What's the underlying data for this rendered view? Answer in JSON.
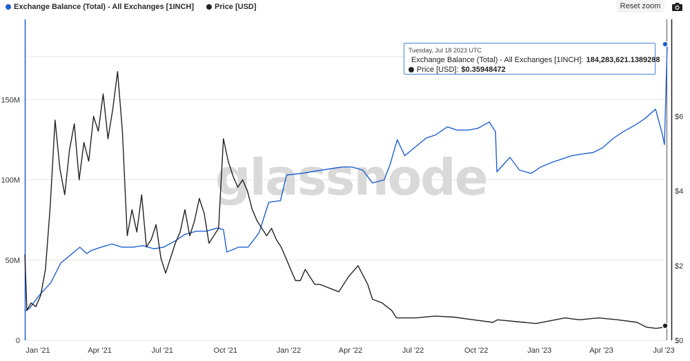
{
  "legend": [
    {
      "label": "Exchange Balance (Total) - All Exchanges [1INCH]",
      "color": "#1f5fd0"
    },
    {
      "label": "Price [USD]",
      "color": "#222222"
    }
  ],
  "toolbar": {
    "reset_label": "Reset zoom",
    "camera_icon": "camera-icon"
  },
  "watermark": "glassnode",
  "tooltip": {
    "date": "Tuesday, Jul 18 2023 UTC",
    "balance_label": "Exchange Balance (Total) - All Exchanges [1INCH]:",
    "balance_value": "184,283,621.1389288",
    "price_label": "Price [USD]:",
    "price_value": "$0.35948472"
  },
  "chart_data": {
    "type": "line",
    "x_ticks": [
      "Jan '21",
      "Apr '21",
      "Jul '21",
      "Oct '21",
      "Jan '22",
      "Apr '22",
      "Jul '22",
      "Oct '22",
      "Jan '23",
      "Apr '23",
      "Jul '23"
    ],
    "y_left_ticks": [
      "0",
      "50M",
      "100M",
      "150M"
    ],
    "y_right_ticks": [
      "$0",
      "$2",
      "$4",
      "$6"
    ],
    "y_left_range": [
      0,
      200000000
    ],
    "y_right_range": [
      0,
      8.6
    ],
    "grid": true,
    "legend_position": "top-left",
    "series": [
      {
        "name": "Exchange Balance (Total) - All Exchanges [1INCH]",
        "axis": "left",
        "color": "#1f5fd0",
        "x": [
          "2020-12-25",
          "2021-01-01",
          "2021-01-15",
          "2021-02-01",
          "2021-02-15",
          "2021-03-01",
          "2021-03-15",
          "2021-03-25",
          "2021-04-01",
          "2021-04-15",
          "2021-05-01",
          "2021-05-15",
          "2021-06-01",
          "2021-06-15",
          "2021-07-01",
          "2021-07-15",
          "2021-08-01",
          "2021-08-15",
          "2021-09-01",
          "2021-09-15",
          "2021-10-01",
          "2021-10-10",
          "2021-10-15",
          "2021-11-01",
          "2021-11-15",
          "2021-12-01",
          "2021-12-15",
          "2022-01-01",
          "2022-01-10",
          "2022-02-01",
          "2022-03-01",
          "2022-04-01",
          "2022-04-15",
          "2022-05-01",
          "2022-05-15",
          "2022-06-01",
          "2022-06-10",
          "2022-06-20",
          "2022-07-01",
          "2022-07-15",
          "2022-08-01",
          "2022-08-15",
          "2022-09-01",
          "2022-09-15",
          "2022-10-01",
          "2022-10-15",
          "2022-11-01",
          "2022-11-10",
          "2022-11-12",
          "2022-12-01",
          "2022-12-15",
          "2023-01-01",
          "2023-01-15",
          "2023-02-01",
          "2023-02-15",
          "2023-03-01",
          "2023-03-15",
          "2023-04-01",
          "2023-04-15",
          "2023-05-01",
          "2023-05-15",
          "2023-06-01",
          "2023-06-15",
          "2023-07-01",
          "2023-07-10",
          "2023-07-14",
          "2023-07-18"
        ],
        "y": [
          18000000,
          20000000,
          28000000,
          36000000,
          48000000,
          53000000,
          58000000,
          54000000,
          56000000,
          58000000,
          60000000,
          58000000,
          58000000,
          59000000,
          57000000,
          58000000,
          62000000,
          66000000,
          68000000,
          68000000,
          70000000,
          69000000,
          55000000,
          58000000,
          58000000,
          67000000,
          86000000,
          87000000,
          103000000,
          104000000,
          106000000,
          108000000,
          108000000,
          106000000,
          98000000,
          100000000,
          110000000,
          125000000,
          115000000,
          120000000,
          126000000,
          128000000,
          133000000,
          131000000,
          131000000,
          132000000,
          136000000,
          130000000,
          105000000,
          114000000,
          106000000,
          104000000,
          108000000,
          111000000,
          113000000,
          115000000,
          116000000,
          117000000,
          120000000,
          126000000,
          130000000,
          134000000,
          138000000,
          144000000,
          130000000,
          122000000,
          184000000
        ]
      },
      {
        "name": "Price [USD]",
        "axis": "right",
        "color": "#222222",
        "x": [
          "2020-12-25",
          "2020-12-28",
          "2021-01-03",
          "2021-01-10",
          "2021-01-17",
          "2021-01-24",
          "2021-01-31",
          "2021-02-07",
          "2021-02-14",
          "2021-02-21",
          "2021-02-28",
          "2021-03-07",
          "2021-03-14",
          "2021-03-21",
          "2021-03-28",
          "2021-04-04",
          "2021-04-11",
          "2021-04-18",
          "2021-04-25",
          "2021-05-02",
          "2021-05-09",
          "2021-05-16",
          "2021-05-23",
          "2021-05-30",
          "2021-06-06",
          "2021-06-13",
          "2021-06-20",
          "2021-06-27",
          "2021-07-04",
          "2021-07-11",
          "2021-07-18",
          "2021-07-25",
          "2021-08-01",
          "2021-08-08",
          "2021-08-15",
          "2021-08-22",
          "2021-08-29",
          "2021-09-05",
          "2021-09-12",
          "2021-09-19",
          "2021-09-26",
          "2021-10-03",
          "2021-10-10",
          "2021-10-17",
          "2021-10-24",
          "2021-10-31",
          "2021-11-07",
          "2021-11-14",
          "2021-11-21",
          "2021-11-28",
          "2021-12-05",
          "2021-12-12",
          "2021-12-19",
          "2021-12-26",
          "2022-01-02",
          "2022-01-09",
          "2022-01-16",
          "2022-01-23",
          "2022-01-30",
          "2022-02-06",
          "2022-02-13",
          "2022-02-20",
          "2022-02-27",
          "2022-03-13",
          "2022-03-27",
          "2022-04-10",
          "2022-04-24",
          "2022-05-08",
          "2022-05-15",
          "2022-05-29",
          "2022-06-12",
          "2022-06-19",
          "2022-07-03",
          "2022-07-17",
          "2022-08-14",
          "2022-09-11",
          "2022-10-09",
          "2022-11-06",
          "2022-11-13",
          "2022-12-11",
          "2023-01-08",
          "2023-02-05",
          "2023-02-19",
          "2023-03-12",
          "2023-04-09",
          "2023-05-07",
          "2023-06-04",
          "2023-06-18",
          "2023-07-02",
          "2023-07-18"
        ],
        "y": [
          2.3,
          0.8,
          1.0,
          0.9,
          1.2,
          1.9,
          3.6,
          5.9,
          4.6,
          3.9,
          5.1,
          5.8,
          4.3,
          5.3,
          4.8,
          6.0,
          5.6,
          6.6,
          5.4,
          6.2,
          7.2,
          5.6,
          2.8,
          3.5,
          2.9,
          3.9,
          2.5,
          2.7,
          3.1,
          2.2,
          1.8,
          2.2,
          2.6,
          2.9,
          3.5,
          2.8,
          3.2,
          3.8,
          3.4,
          2.6,
          2.8,
          3.0,
          5.4,
          4.8,
          4.4,
          4.1,
          4.3,
          4.0,
          3.5,
          3.2,
          3.0,
          2.8,
          3.0,
          2.7,
          2.5,
          2.2,
          1.9,
          1.6,
          1.6,
          1.9,
          1.7,
          1.5,
          1.5,
          1.4,
          1.3,
          1.7,
          2.0,
          1.5,
          1.1,
          1.0,
          0.8,
          0.6,
          0.6,
          0.6,
          0.65,
          0.62,
          0.55,
          0.48,
          0.55,
          0.5,
          0.45,
          0.55,
          0.6,
          0.55,
          0.6,
          0.55,
          0.48,
          0.35,
          0.32,
          0.36
        ]
      }
    ]
  }
}
